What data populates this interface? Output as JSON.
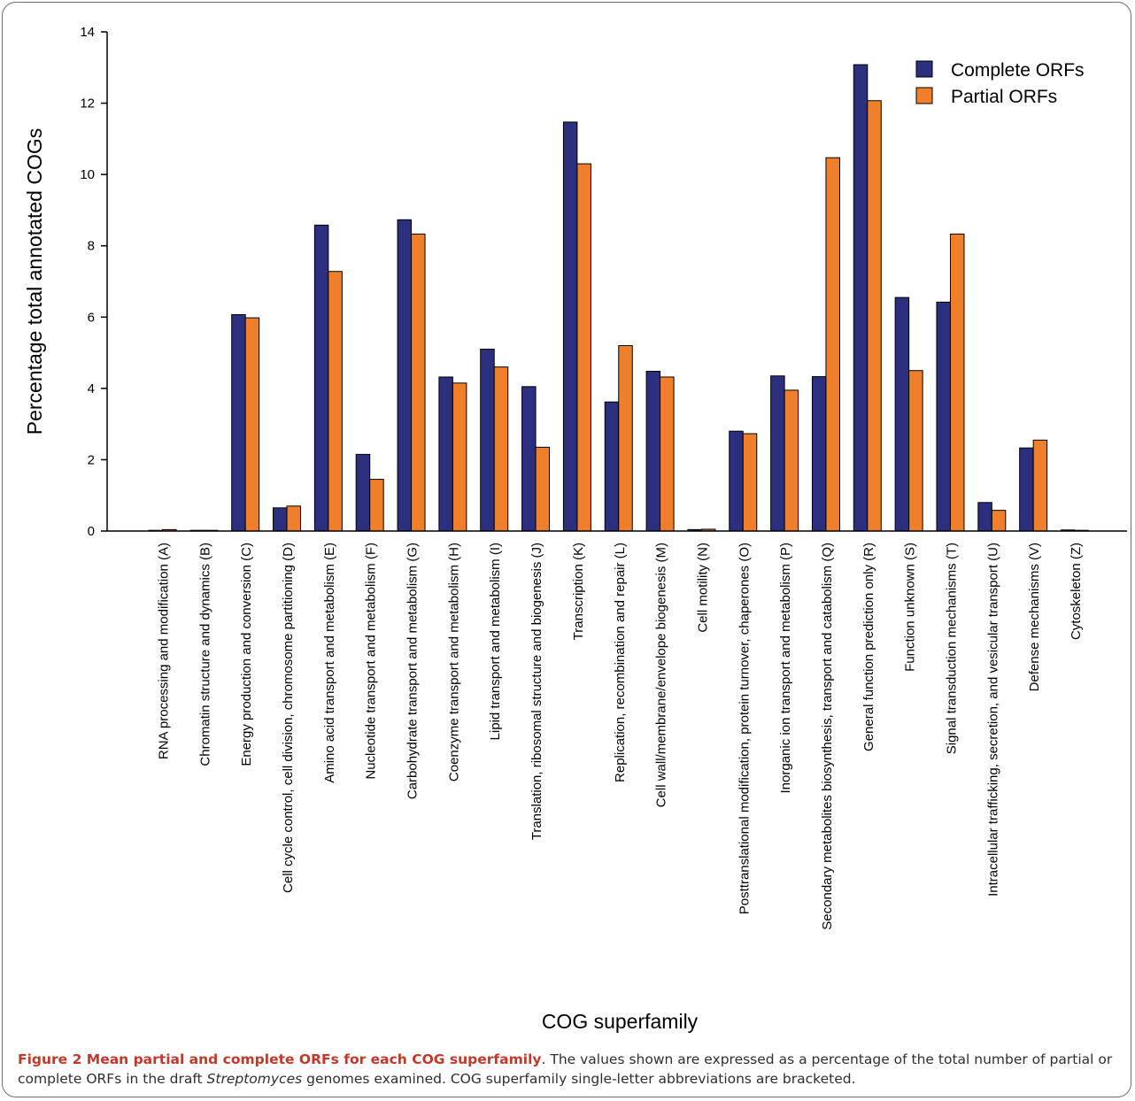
{
  "chart_data": {
    "type": "bar",
    "xlabel": "COG superfamily",
    "ylabel": "Percentage total annotated COGs",
    "ylim": [
      0,
      14
    ],
    "yticks": [
      0,
      2,
      4,
      6,
      8,
      10,
      12,
      14
    ],
    "legend_position": "top-right",
    "grid": false,
    "categories": [
      "RNA processing and modification (A)",
      "Chromatin structure and dynamics (B)",
      "Energy production and conversion (C)",
      "Cell cycle control, cell division, chromosome partitioning (D)",
      "Amino acid transport and metabolism (E)",
      "Nucleotide transport and metabolism (F)",
      "Carbohydrate transport and metabolism (G)",
      "Coenzyme transport and metabolism (H)",
      "Lipid transport and metabolism (I)",
      "Translation, ribosomal structure and biogenesis (J)",
      "Transcription (K)",
      "Replication, recombination and repair (L)",
      "Cell wall/membrane/envelope biogenesis (M)",
      "Cell motility (N)",
      "Posttranslational modification, protein turnover, chaperones (O)",
      "Inorganic ion transport and metabolism (P)",
      "Secondary metabolites biosynthesis, transport and catabolism (Q)",
      "General function prediction only (R)",
      "Function unknown (S)",
      "Signal transduction mechanisms (T)",
      "Intracellular trafficking, secretion, and vesicular transport (U)",
      "Defense mechanisms (V)",
      "Cytoskeleton (Z)"
    ],
    "series": [
      {
        "name": "Complete ORFs",
        "color": "#2b2f7e",
        "values": [
          0.02,
          0.02,
          6.07,
          0.65,
          8.58,
          2.15,
          8.73,
          4.32,
          5.1,
          4.05,
          11.47,
          3.62,
          4.48,
          0.04,
          2.8,
          4.35,
          4.33,
          13.08,
          6.55,
          6.42,
          0.8,
          2.33,
          0.03
        ]
      },
      {
        "name": "Partial ORFs",
        "color": "#ef7f2a",
        "values": [
          0.04,
          0.02,
          5.98,
          0.7,
          7.28,
          1.45,
          8.33,
          4.15,
          4.6,
          2.35,
          10.3,
          5.2,
          4.32,
          0.05,
          2.73,
          3.95,
          10.47,
          12.07,
          4.5,
          8.33,
          0.58,
          2.55,
          0.01
        ]
      }
    ]
  },
  "caption": {
    "lead": "Figure 2 Mean partial and complete ORFs for each COG superfamily",
    "text_before_italic": ". The values shown are expressed as a percentage of the total number of partial or complete ORFs in the draft ",
    "italic": "Streptomyces",
    "text_after_italic": " genomes examined. COG superfamily single-letter abbreviations are bracketed."
  }
}
